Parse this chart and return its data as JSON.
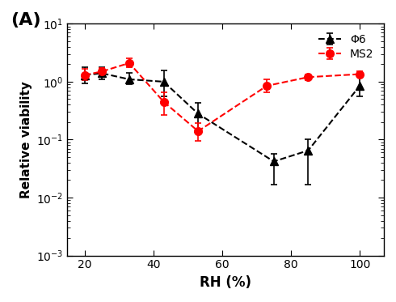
{
  "phi6_x": [
    20,
    25,
    33,
    43,
    53,
    75,
    85,
    100
  ],
  "phi6_y": [
    1.3,
    1.4,
    1.1,
    1.0,
    0.28,
    0.042,
    0.065,
    0.85
  ],
  "phi6_yerr_low": [
    0.35,
    0.3,
    0.2,
    0.45,
    0.13,
    0.025,
    0.048,
    0.3
  ],
  "phi6_yerr_high": [
    0.5,
    0.4,
    0.3,
    0.55,
    0.15,
    0.015,
    0.035,
    0.4
  ],
  "ms2_x": [
    20,
    25,
    33,
    43,
    53,
    73,
    85,
    100
  ],
  "ms2_y": [
    1.3,
    1.5,
    2.1,
    0.45,
    0.14,
    0.85,
    1.2,
    1.35
  ],
  "ms2_yerr_low": [
    0.25,
    0.2,
    0.3,
    0.18,
    0.045,
    0.2,
    0.12,
    0.12
  ],
  "ms2_yerr_high": [
    0.35,
    0.25,
    0.4,
    0.2,
    0.055,
    0.25,
    0.15,
    0.15
  ],
  "xlabel": "RH (%)",
  "ylabel": "Relative viability",
  "panel_label": "(A)",
  "phi6_label": "Φ6",
  "ms2_label": "MS2",
  "ylim_low": 0.001,
  "ylim_high": 10,
  "xlim_low": 15,
  "xlim_high": 107,
  "xticks": [
    20,
    40,
    60,
    80,
    100
  ],
  "phi6_color": "black",
  "ms2_color": "red",
  "background_color": "#ffffff"
}
